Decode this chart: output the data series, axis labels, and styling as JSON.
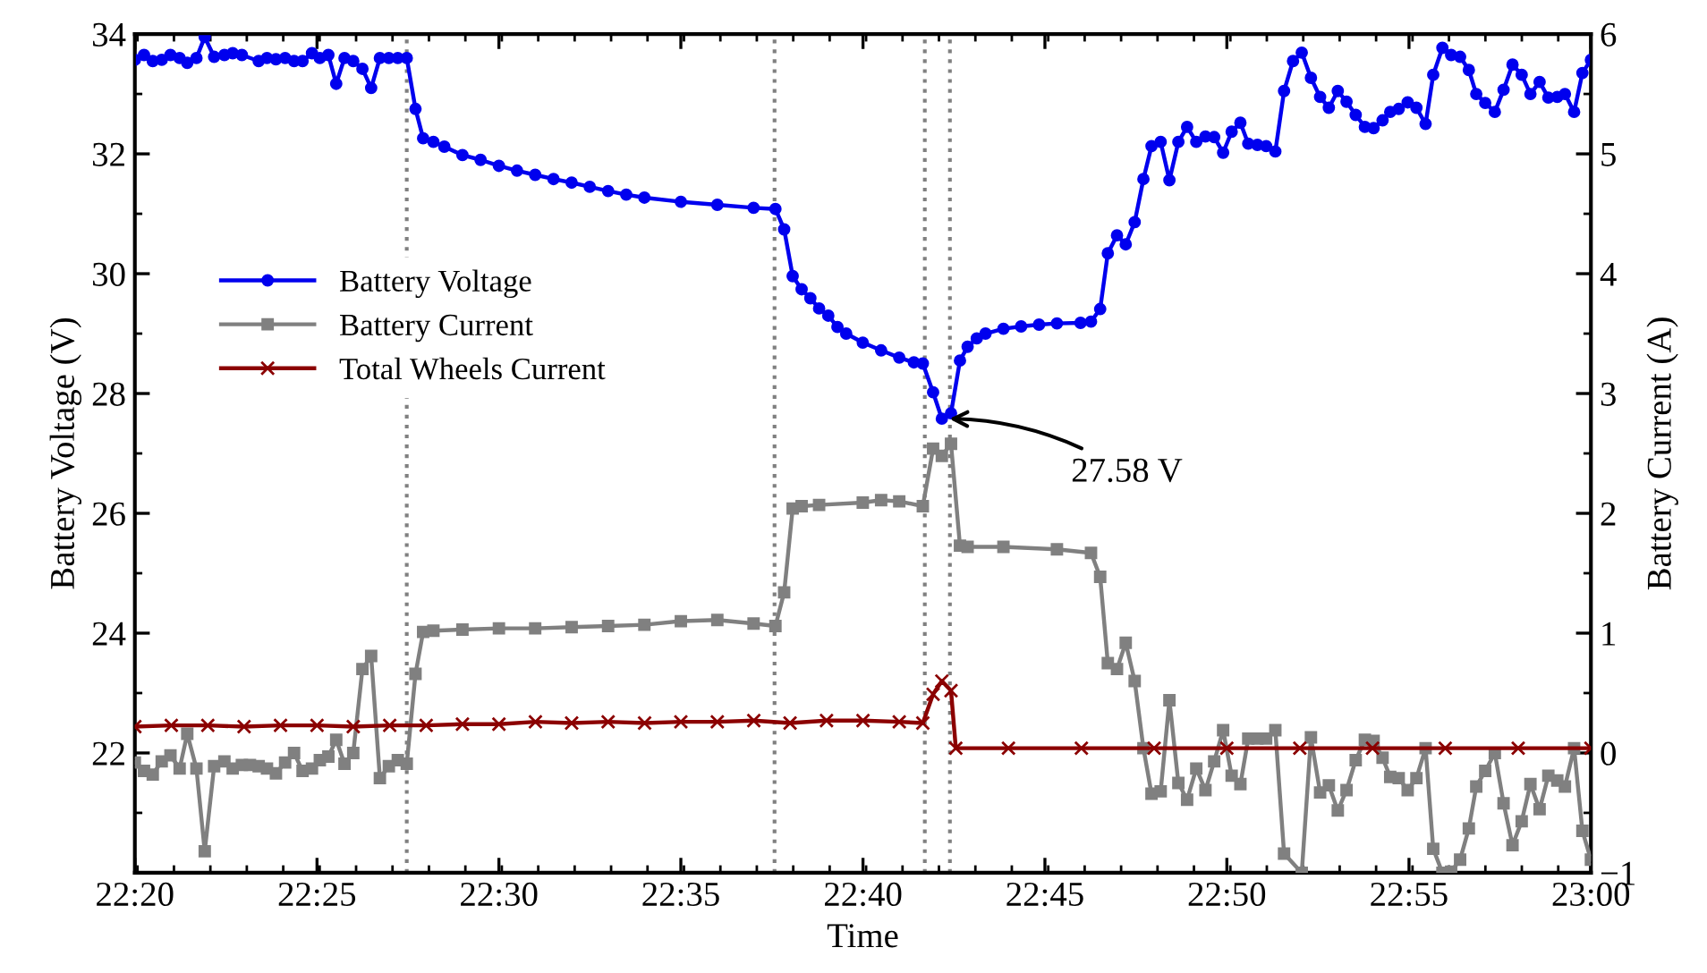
{
  "chart_data": {
    "type": "line",
    "xlabel": "Time",
    "ylabel": "Battery Voltage (V)",
    "y2label": "Battery Current (A)",
    "xlim": [
      22.3333,
      23.0
    ],
    "xticks": [
      {
        "value": 22.3333,
        "label": "22:20"
      },
      {
        "value": 22.4167,
        "label": "22:25"
      },
      {
        "value": 22.5,
        "label": "22:30"
      },
      {
        "value": 22.5833,
        "label": "22:35"
      },
      {
        "value": 22.6667,
        "label": "22:40"
      },
      {
        "value": 22.75,
        "label": "22:45"
      },
      {
        "value": 22.8333,
        "label": "22:50"
      },
      {
        "value": 22.9167,
        "label": "22:55"
      },
      {
        "value": 23.0,
        "label": "23:00"
      }
    ],
    "ylim": [
      20,
      34
    ],
    "yticks": [
      22,
      24,
      26,
      28,
      30,
      32,
      34
    ],
    "y2lim": [
      -1,
      6
    ],
    "y2ticks": [
      -1,
      0,
      1,
      2,
      3,
      4,
      5,
      6
    ],
    "grid": false,
    "legend": "left",
    "line_style": "solid",
    "series": [
      {
        "name": "Battery Voltage",
        "color": "#0000ee",
        "marker": "circle",
        "x": [
          22.3333,
          22.3375,
          22.3415,
          22.3456,
          22.3496,
          22.3538,
          22.3573,
          22.3615,
          22.3653,
          22.3696,
          22.3743,
          22.3781,
          22.3823,
          22.39,
          22.3938,
          22.3979,
          22.4021,
          22.4062,
          22.4101,
          22.4144,
          22.418,
          22.4219,
          22.4255,
          22.4293,
          22.4333,
          22.4375,
          22.4415,
          22.4455,
          22.4496,
          22.4537,
          22.4578,
          22.4618,
          22.4653,
          22.47,
          22.475,
          22.4833,
          22.4916,
          22.5,
          22.5083,
          22.5166,
          22.525,
          22.5333,
          22.5416,
          22.55,
          22.5583,
          22.5666,
          22.5833,
          22.6,
          22.6166,
          22.6266,
          22.6306,
          22.6345,
          22.6386,
          22.6426,
          22.6466,
          22.6508,
          22.655,
          22.659,
          22.6666,
          22.675,
          22.6833,
          22.69,
          22.6941,
          22.6988,
          22.7028,
          22.707,
          22.7111,
          22.7146,
          22.7188,
          22.7228,
          22.731,
          22.7391,
          22.7473,
          22.7555,
          22.7663,
          22.7711,
          22.7753,
          22.7788,
          22.783,
          22.787,
          22.7911,
          22.7951,
          22.7988,
          22.803,
          22.807,
          22.8111,
          22.8151,
          22.8193,
          22.8235,
          22.8275,
          22.8316,
          22.8355,
          22.8395,
          22.8431,
          22.8473,
          22.8513,
          22.8555,
          22.8595,
          22.8636,
          22.8676,
          22.8718,
          22.876,
          22.88,
          22.8841,
          22.8881,
          22.8923,
          22.8965,
          22.9005,
          22.9046,
          22.9081,
          22.912,
          22.9161,
          22.9201,
          22.9243,
          22.9278,
          22.932,
          22.936,
          22.9401,
          22.9441,
          22.9475,
          22.9516,
          22.956,
          22.96,
          22.9641,
          22.9683,
          22.9723,
          22.9765,
          22.9805,
          22.9846,
          22.9881,
          22.9923,
          22.9961,
          23.0
        ],
        "values": [
          33.57,
          33.65,
          33.55,
          33.57,
          33.65,
          33.6,
          33.52,
          33.6,
          33.95,
          33.62,
          33.65,
          33.68,
          33.65,
          33.55,
          33.6,
          33.58,
          33.6,
          33.55,
          33.55,
          33.68,
          33.6,
          33.65,
          33.17,
          33.6,
          33.55,
          33.42,
          33.1,
          33.6,
          33.6,
          33.6,
          33.6,
          32.75,
          32.26,
          32.2,
          32.12,
          31.98,
          31.9,
          31.8,
          31.72,
          31.65,
          31.58,
          31.52,
          31.45,
          31.38,
          31.32,
          31.27,
          31.2,
          31.15,
          31.1,
          31.08,
          30.74,
          29.96,
          29.74,
          29.59,
          29.42,
          29.3,
          29.11,
          29.0,
          28.85,
          28.72,
          28.6,
          28.52,
          28.5,
          28.02,
          27.58,
          27.67,
          28.55,
          28.78,
          28.92,
          29.0,
          29.08,
          29.12,
          29.15,
          29.17,
          29.18,
          29.2,
          29.41,
          30.34,
          30.64,
          30.49,
          30.86,
          31.58,
          32.13,
          32.2,
          31.56,
          32.2,
          32.45,
          32.2,
          32.29,
          32.28,
          32.02,
          32.37,
          32.52,
          32.17,
          32.15,
          32.13,
          32.04,
          33.05,
          33.55,
          33.69,
          33.27,
          32.95,
          32.77,
          33.05,
          32.87,
          32.65,
          32.45,
          32.43,
          32.56,
          32.7,
          32.75,
          32.86,
          32.77,
          32.5,
          33.32,
          33.77,
          33.65,
          33.62,
          33.4,
          33.0,
          32.85,
          32.7,
          33.07,
          33.49,
          33.32,
          33.0,
          33.2,
          32.94,
          32.95,
          33.0,
          32.7,
          33.35,
          33.57
        ]
      },
      {
        "name": "Battery Current",
        "color": "#808080",
        "marker": "square",
        "axis": "y2",
        "x": [
          22.3333,
          22.3375,
          22.3415,
          22.3456,
          22.3496,
          22.3538,
          22.3573,
          22.3615,
          22.3653,
          22.3696,
          22.3743,
          22.3781,
          22.3823,
          22.386,
          22.39,
          22.3938,
          22.3979,
          22.4021,
          22.4062,
          22.4101,
          22.4144,
          22.418,
          22.4219,
          22.4255,
          22.4293,
          22.4333,
          22.4375,
          22.4415,
          22.4455,
          22.4496,
          22.4537,
          22.4578,
          22.4618,
          22.4653,
          22.47,
          22.4833,
          22.5,
          22.5166,
          22.5333,
          22.55,
          22.5666,
          22.5833,
          22.6,
          22.6166,
          22.6266,
          22.6306,
          22.6345,
          22.6386,
          22.6466,
          22.6666,
          22.675,
          22.6833,
          22.6941,
          22.6988,
          22.7028,
          22.707,
          22.7111,
          22.7146,
          22.731,
          22.7555,
          22.7711,
          22.7753,
          22.7788,
          22.783,
          22.787,
          22.7911,
          22.7951,
          22.7988,
          22.803,
          22.807,
          22.8111,
          22.8151,
          22.8193,
          22.8235,
          22.8275,
          22.8316,
          22.8355,
          22.8395,
          22.8431,
          22.8473,
          22.8513,
          22.8555,
          22.8595,
          22.8676,
          22.8718,
          22.876,
          22.88,
          22.8841,
          22.8881,
          22.8923,
          22.8965,
          22.9005,
          22.9046,
          22.9081,
          22.912,
          22.9161,
          22.9201,
          22.9243,
          22.9278,
          22.932,
          22.936,
          22.9401,
          22.9441,
          22.9475,
          22.9516,
          22.956,
          22.96,
          22.9641,
          22.9683,
          22.9723,
          22.9765,
          22.9805,
          22.9846,
          22.9881,
          22.9923,
          22.9961,
          23.0
        ],
        "values": [
          -0.08,
          -0.15,
          -0.18,
          -0.07,
          -0.02,
          -0.13,
          0.16,
          -0.13,
          -0.82,
          -0.11,
          -0.07,
          -0.13,
          -0.1,
          -0.1,
          -0.11,
          -0.13,
          -0.17,
          -0.08,
          0.0,
          -0.15,
          -0.13,
          -0.06,
          -0.03,
          0.11,
          -0.09,
          0.0,
          0.7,
          0.81,
          -0.21,
          -0.11,
          -0.06,
          -0.09,
          0.66,
          1.01,
          1.02,
          1.03,
          1.04,
          1.04,
          1.05,
          1.06,
          1.07,
          1.1,
          1.11,
          1.08,
          1.06,
          1.34,
          2.04,
          2.06,
          2.07,
          2.09,
          2.11,
          2.1,
          2.06,
          2.54,
          2.48,
          2.58,
          1.73,
          1.72,
          1.72,
          1.7,
          1.67,
          1.47,
          0.75,
          0.7,
          0.92,
          0.6,
          0.04,
          -0.34,
          -0.32,
          0.44,
          -0.25,
          -0.39,
          -0.13,
          -0.31,
          -0.07,
          0.19,
          -0.19,
          -0.26,
          0.12,
          0.12,
          0.12,
          0.19,
          -0.84,
          -1.0,
          0.13,
          -0.33,
          -0.27,
          -0.48,
          -0.31,
          -0.06,
          0.11,
          0.1,
          -0.04,
          -0.2,
          -0.21,
          -0.31,
          -0.21,
          0.04,
          -0.8,
          -1.0,
          -0.99,
          -0.89,
          -0.63,
          -0.28,
          -0.15,
          0.0,
          -0.42,
          -0.77,
          -0.57,
          -0.26,
          -0.47,
          -0.19,
          -0.23,
          -0.28,
          0.04,
          -0.65,
          -0.89
        ]
      },
      {
        "name": "Total Wheels Current",
        "color": "#8b0000",
        "marker": "cross",
        "axis": "y2",
        "x": [
          22.3333,
          22.35,
          22.3667,
          22.3833,
          22.4,
          22.4167,
          22.4333,
          22.45,
          22.4667,
          22.4833,
          22.5,
          22.5167,
          22.5333,
          22.55,
          22.5667,
          22.5833,
          22.6,
          22.6167,
          22.6333,
          22.65,
          22.6667,
          22.6833,
          22.6941,
          22.6988,
          22.7028,
          22.707,
          22.7092,
          22.7333,
          22.7667,
          22.8,
          22.8333,
          22.8667,
          22.9,
          22.9333,
          22.9667,
          23.0
        ],
        "values": [
          0.22,
          0.23,
          0.23,
          0.22,
          0.23,
          0.23,
          0.22,
          0.23,
          0.23,
          0.24,
          0.24,
          0.26,
          0.25,
          0.26,
          0.25,
          0.26,
          0.26,
          0.27,
          0.25,
          0.27,
          0.27,
          0.26,
          0.25,
          0.49,
          0.6,
          0.52,
          0.04,
          0.04,
          0.04,
          0.04,
          0.04,
          0.04,
          0.04,
          0.04,
          0.04,
          0.04
        ]
      }
    ],
    "ref_lines": [
      {
        "axis": "x",
        "value": 22.4578,
        "color": "#808080",
        "line_style": "dotted"
      },
      {
        "axis": "x",
        "value": 22.6262,
        "color": "#808080",
        "line_style": "dotted"
      },
      {
        "axis": "x",
        "value": 22.695,
        "color": "#808080",
        "line_style": "dotted"
      },
      {
        "axis": "x",
        "value": 22.7065,
        "color": "#808080",
        "line_style": "dotted"
      }
    ],
    "annotations": [
      {
        "text": "27.58 V",
        "x": 22.7028,
        "y": 27.58
      }
    ]
  }
}
